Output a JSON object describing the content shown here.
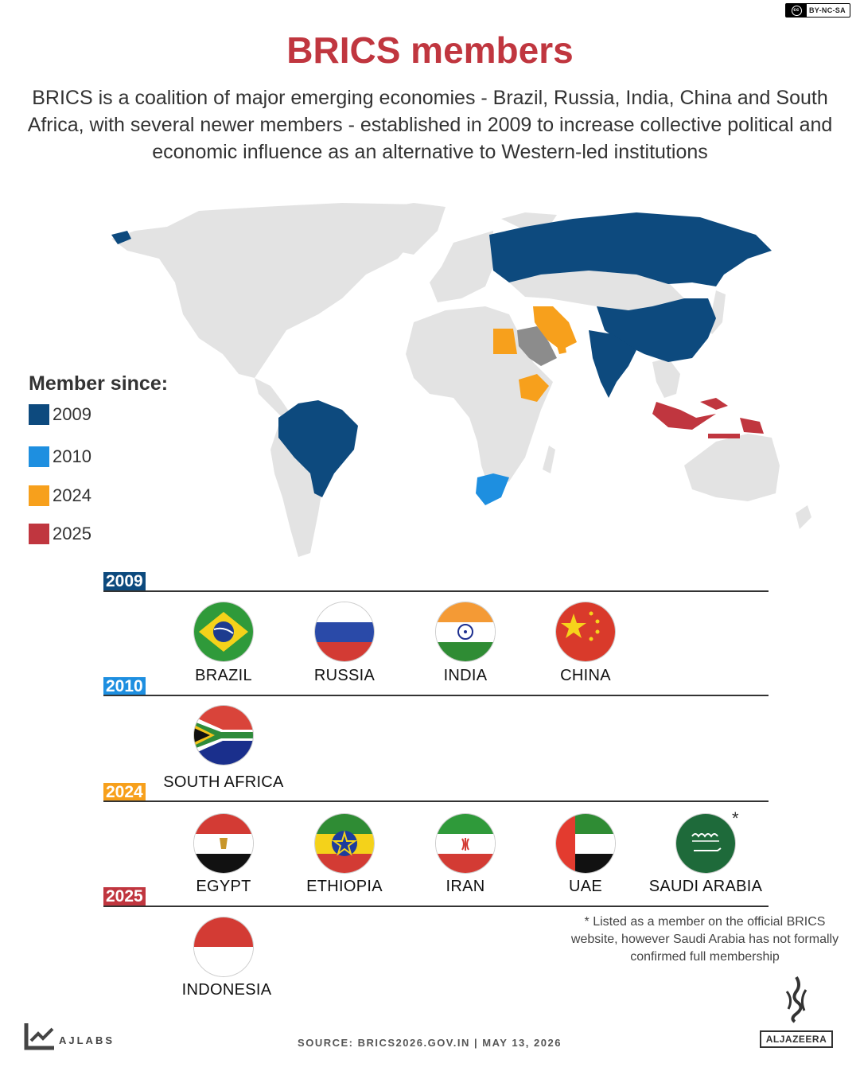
{
  "license": {
    "label": "BY-NC-SA",
    "cc": "cc"
  },
  "title": "BRICS members",
  "subtitle": "BRICS is a coalition of major emerging economies - Brazil, Russia, India, China and South Africa, with several newer members - established in 2009 to increase collective political and economic influence as an alternative to Western-led institutions",
  "legend": {
    "title": "Member since:",
    "items": [
      {
        "label": "2009",
        "color": "#0d4a7e"
      },
      {
        "label": "2010",
        "color": "#1e8fe0"
      },
      {
        "label": "2024",
        "color": "#f7a01c"
      },
      {
        "label": "2025",
        "color": "#c0363f"
      }
    ],
    "unconfirmed_color": "#8c8c8c",
    "land_color": "#e3e3e3"
  },
  "sections": [
    {
      "year": "2009",
      "color": "#0d4a7e",
      "countries": [
        "BRAZIL",
        "RUSSIA",
        "INDIA",
        "CHINA"
      ]
    },
    {
      "year": "2010",
      "color": "#1e8fe0",
      "countries": [
        "SOUTH AFRICA"
      ]
    },
    {
      "year": "2024",
      "color": "#f7a01c",
      "countries": [
        "EGYPT",
        "ETHIOPIA",
        "IRAN",
        "UAE",
        "SAUDI ARABIA"
      ]
    },
    {
      "year": "2025",
      "color": "#c0363f",
      "countries": [
        "INDONESIA"
      ]
    }
  ],
  "asterisk": "*",
  "footnote": "*  Listed as a member on the official BRICS website, however Saudi Arabia has not formally confirmed full membership",
  "footer": {
    "brand": "AJLABS",
    "source": "SOURCE: BRICS2026.GOV.IN    |    MAY 13, 2026",
    "logo_text": "ALJAZEERA"
  }
}
